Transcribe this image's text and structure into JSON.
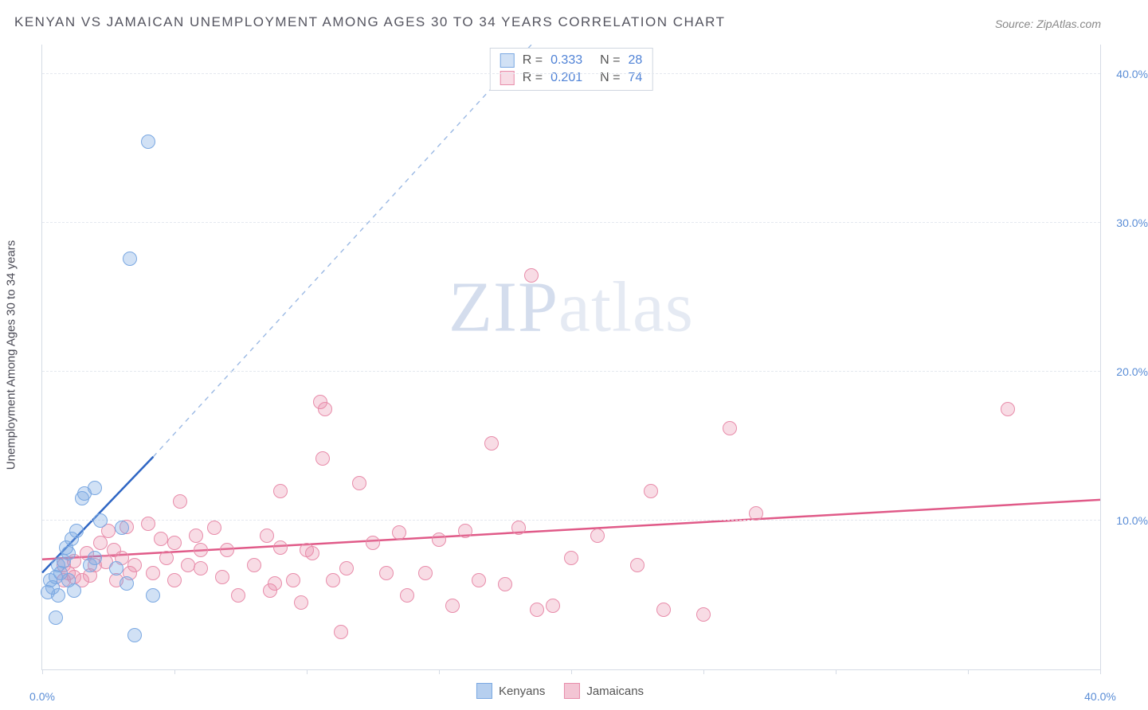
{
  "title": "KENYAN VS JAMAICAN UNEMPLOYMENT AMONG AGES 30 TO 34 YEARS CORRELATION CHART",
  "source": "Source: ZipAtlas.com",
  "y_axis_label": "Unemployment Among Ages 30 to 34 years",
  "watermark": {
    "bold": "ZIP",
    "rest": "atlas"
  },
  "chart": {
    "type": "scatter",
    "xlim": [
      0,
      40
    ],
    "ylim": [
      0,
      42
    ],
    "x_ticks": [
      0,
      5,
      10,
      15,
      20,
      25,
      30,
      35,
      40
    ],
    "x_tick_labels": {
      "0": "0.0%",
      "40": "40.0%"
    },
    "y_ticks": [
      10,
      20,
      30,
      40
    ],
    "y_tick_labels": {
      "10": "10.0%",
      "20": "20.0%",
      "30": "30.0%",
      "40": "40.0%"
    },
    "grid_color": "#e4e8ef",
    "background_color": "#ffffff",
    "axis_color": "#d5dbe5",
    "point_radius": 9,
    "series": [
      {
        "name": "Kenyans",
        "fill": "rgba(122,168,226,0.35)",
        "stroke": "#7aa8e2",
        "trend_color": "#2f66c4",
        "trend_dash_color": "#9bb9e4",
        "R": "0.333",
        "N": "28",
        "trend": {
          "x1": 0,
          "y1": 6.5,
          "x2": 4.2,
          "y2": 14.3,
          "dash_x2": 18.5,
          "dash_y2": 42
        },
        "points": [
          [
            0.2,
            5.2
          ],
          [
            0.3,
            6.0
          ],
          [
            0.4,
            5.5
          ],
          [
            0.5,
            6.2
          ],
          [
            0.6,
            7.0
          ],
          [
            0.6,
            5.0
          ],
          [
            0.7,
            6.5
          ],
          [
            0.8,
            7.3
          ],
          [
            0.9,
            8.2
          ],
          [
            1.0,
            6.0
          ],
          [
            1.0,
            7.8
          ],
          [
            1.1,
            8.8
          ],
          [
            1.2,
            5.3
          ],
          [
            1.3,
            9.3
          ],
          [
            1.5,
            11.5
          ],
          [
            1.6,
            11.8
          ],
          [
            1.8,
            7.0
          ],
          [
            2.0,
            7.5
          ],
          [
            2.0,
            12.2
          ],
          [
            2.2,
            10.0
          ],
          [
            2.8,
            6.8
          ],
          [
            3.0,
            9.5
          ],
          [
            3.2,
            5.8
          ],
          [
            3.5,
            2.3
          ],
          [
            4.2,
            5.0
          ],
          [
            3.3,
            27.6
          ],
          [
            4.0,
            35.5
          ],
          [
            0.5,
            3.5
          ]
        ]
      },
      {
        "name": "Jamaicans",
        "fill": "rgba(232,140,170,0.30)",
        "stroke": "#e88caa",
        "trend_color": "#e05a88",
        "R": "0.201",
        "N": "74",
        "trend": {
          "x1": 0,
          "y1": 7.4,
          "x2": 40,
          "y2": 11.4
        },
        "points": [
          [
            0.8,
            7.0
          ],
          [
            1.0,
            6.5
          ],
          [
            1.2,
            7.3
          ],
          [
            1.5,
            6.0
          ],
          [
            1.7,
            7.8
          ],
          [
            1.8,
            6.3
          ],
          [
            2.0,
            7.0
          ],
          [
            2.2,
            8.5
          ],
          [
            2.4,
            7.2
          ],
          [
            2.5,
            9.3
          ],
          [
            2.7,
            8.0
          ],
          [
            2.8,
            6.0
          ],
          [
            3.0,
            7.5
          ],
          [
            3.2,
            9.6
          ],
          [
            3.3,
            6.5
          ],
          [
            3.5,
            7.0
          ],
          [
            4.0,
            9.8
          ],
          [
            4.2,
            6.5
          ],
          [
            4.5,
            8.8
          ],
          [
            4.7,
            7.5
          ],
          [
            5.0,
            6.0
          ],
          [
            5.0,
            8.5
          ],
          [
            5.2,
            11.3
          ],
          [
            5.5,
            7.0
          ],
          [
            5.8,
            9.0
          ],
          [
            6.0,
            6.8
          ],
          [
            6.0,
            8.0
          ],
          [
            6.5,
            9.5
          ],
          [
            6.8,
            6.2
          ],
          [
            7.0,
            8.0
          ],
          [
            7.4,
            5.0
          ],
          [
            8.0,
            7.0
          ],
          [
            8.5,
            9.0
          ],
          [
            8.6,
            5.3
          ],
          [
            9.0,
            8.2
          ],
          [
            9.0,
            12.0
          ],
          [
            9.5,
            6.0
          ],
          [
            9.8,
            4.5
          ],
          [
            10.0,
            8.0
          ],
          [
            10.5,
            18.0
          ],
          [
            10.7,
            17.5
          ],
          [
            10.6,
            14.2
          ],
          [
            10.2,
            7.8
          ],
          [
            11.0,
            6.0
          ],
          [
            11.3,
            2.5
          ],
          [
            12.0,
            12.5
          ],
          [
            12.5,
            8.5
          ],
          [
            13.0,
            6.5
          ],
          [
            13.5,
            9.2
          ],
          [
            13.8,
            5.0
          ],
          [
            14.5,
            6.5
          ],
          [
            15.0,
            8.7
          ],
          [
            15.5,
            4.3
          ],
          [
            16.0,
            9.3
          ],
          [
            16.5,
            6.0
          ],
          [
            17.0,
            15.2
          ],
          [
            17.5,
            5.7
          ],
          [
            18.0,
            9.5
          ],
          [
            18.5,
            26.5
          ],
          [
            18.7,
            4.0
          ],
          [
            19.3,
            4.3
          ],
          [
            20.0,
            7.5
          ],
          [
            21.0,
            9.0
          ],
          [
            22.5,
            7.0
          ],
          [
            23.0,
            12.0
          ],
          [
            23.5,
            4.0
          ],
          [
            25.0,
            3.7
          ],
          [
            26.0,
            16.2
          ],
          [
            27.0,
            10.5
          ],
          [
            36.5,
            17.5
          ],
          [
            8.8,
            5.8
          ],
          [
            11.5,
            6.8
          ],
          [
            0.8,
            6.0
          ],
          [
            1.2,
            6.2
          ]
        ]
      }
    ]
  },
  "legend": {
    "items": [
      {
        "label": "Kenyans",
        "fill": "rgba(122,168,226,0.55)",
        "stroke": "#7aa8e2"
      },
      {
        "label": "Jamaicans",
        "fill": "rgba(232,140,170,0.50)",
        "stroke": "#e88caa"
      }
    ]
  }
}
